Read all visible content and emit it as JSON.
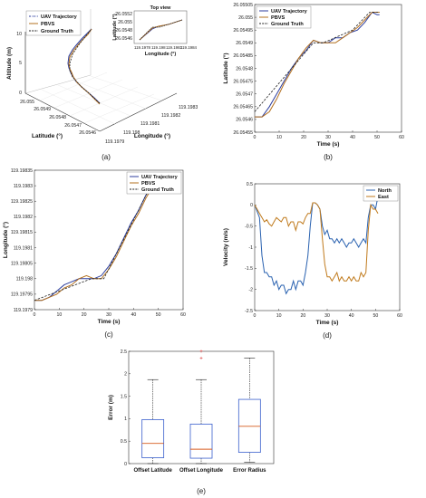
{
  "colors": {
    "uav": "#2c3e9e",
    "pbvs": "#b3701f",
    "ground": "#222222",
    "north": "#2a62b0",
    "east": "#c07a1c",
    "box": "#3a5fcd",
    "median": "#d65a1e",
    "outlier": "#d92222"
  },
  "chart_data": [
    {
      "id": "a",
      "panel_label": "(a)",
      "type": "line",
      "projection": "3d",
      "zlabel": "Altitude (m)",
      "ylabel": "Latitude (°)",
      "xlabel": "Longitude (°)",
      "z_ticks": [
        "10",
        "5",
        "0"
      ],
      "lat_ticks": [
        "26.055",
        "26.0549",
        "26.0548",
        "26.0547",
        "26.0546"
      ],
      "lon_ticks": [
        "119.1979",
        "119.198",
        "119.1981",
        "119.1982",
        "119.1983"
      ],
      "legend": [
        "UAV Trajectory",
        "PBVS",
        "Ground Truth"
      ],
      "inset": {
        "title": "Top view",
        "xlabel": "Longitude (°)",
        "ylabel": "Latitude (°)",
        "x_ticks": [
          "119.1978",
          "119.198",
          "119.1982",
          "119.1984"
        ],
        "y_ticks": [
          "26.0552",
          "26.055",
          "26.0548",
          "26.0546"
        ]
      }
    },
    {
      "id": "b",
      "panel_label": "(b)",
      "type": "line",
      "xlabel": "Time (s)",
      "ylabel": "Latitude (°)",
      "xlim": [
        0,
        60
      ],
      "ylim": [
        26.05455,
        26.05505
      ],
      "x_ticks": [
        "0",
        "10",
        "20",
        "30",
        "40",
        "50",
        "60"
      ],
      "y_ticks": [
        "26.05455",
        "26.0546",
        "26.05465",
        "26.0547",
        "26.05475",
        "26.0548",
        "26.05485",
        "26.0549",
        "26.05495",
        "26.055",
        "26.05505"
      ],
      "legend": [
        "UAV Trajectory",
        "PBVS",
        "Ground Truth"
      ],
      "series": [
        {
          "name": "UAV Trajectory",
          "x": [
            0,
            3,
            6,
            9,
            12,
            15,
            18,
            21,
            24,
            27,
            30,
            33,
            36,
            39,
            42,
            45,
            48,
            50,
            51
          ],
          "y": [
            26.05461,
            26.05461,
            26.05465,
            26.0547,
            26.05475,
            26.0548,
            26.05484,
            26.05487,
            26.05491,
            26.0549,
            26.0549,
            26.05492,
            26.05492,
            26.05494,
            26.05495,
            26.05498,
            26.05502,
            26.05501,
            26.05501
          ]
        },
        {
          "name": "PBVS",
          "x": [
            0,
            3,
            6,
            9,
            12,
            15,
            18,
            21,
            24,
            27,
            30,
            33,
            36,
            39,
            42,
            45,
            48,
            50,
            51
          ],
          "y": [
            26.05461,
            26.05461,
            26.05463,
            26.05468,
            26.05474,
            26.05479,
            26.05484,
            26.05488,
            26.05491,
            26.0549,
            26.0549,
            26.0549,
            26.05492,
            26.05494,
            26.05496,
            26.05499,
            26.05502,
            26.05502,
            26.05502
          ]
        },
        {
          "name": "Ground Truth",
          "x": [
            0,
            24,
            28,
            40,
            47,
            51
          ],
          "y": [
            26.05463,
            26.0549,
            26.0549,
            26.05495,
            26.05502,
            26.05502
          ]
        }
      ]
    },
    {
      "id": "c",
      "panel_label": "(c)",
      "type": "line",
      "xlabel": "Time (s)",
      "ylabel": "Longitude (°)",
      "xlim": [
        0,
        60
      ],
      "ylim": [
        119.1979,
        119.19835
      ],
      "x_ticks": [
        "0",
        "10",
        "20",
        "30",
        "40",
        "50",
        "60"
      ],
      "y_ticks": [
        "119.1979",
        "119.19795",
        "119.198",
        "119.19805",
        "119.1981",
        "119.19815",
        "119.1982",
        "119.19825",
        "119.1983",
        "119.19835"
      ],
      "legend": [
        "UAV Trajectory",
        "PBVS",
        "Ground Truth"
      ],
      "series": [
        {
          "name": "UAV Trajectory",
          "x": [
            0,
            3,
            6,
            9,
            12,
            15,
            18,
            21,
            24,
            27,
            30,
            33,
            36,
            39,
            42,
            45,
            48,
            50,
            51
          ],
          "y": [
            119.19793,
            119.19793,
            119.19794,
            119.19796,
            119.19798,
            119.19799,
            119.198,
            119.198,
            119.198,
            119.19801,
            119.19804,
            119.19808,
            119.19813,
            119.19818,
            119.19822,
            119.19827,
            119.1983,
            119.1983,
            119.1983
          ]
        },
        {
          "name": "PBVS",
          "x": [
            0,
            3,
            6,
            9,
            12,
            15,
            18,
            21,
            24,
            27,
            30,
            33,
            36,
            39,
            42,
            45,
            48,
            50,
            51
          ],
          "y": [
            119.19793,
            119.19793,
            119.19794,
            119.19795,
            119.19797,
            119.19798,
            119.198,
            119.19801,
            119.198,
            119.198,
            119.19803,
            119.19807,
            119.19812,
            119.19817,
            119.19821,
            119.19826,
            119.1983,
            119.19831,
            119.1983
          ]
        },
        {
          "name": "Ground Truth",
          "x": [
            0,
            23,
            28,
            47,
            51
          ],
          "y": [
            119.19793,
            119.198,
            119.198,
            119.1983,
            119.1983
          ]
        }
      ]
    },
    {
      "id": "d",
      "panel_label": "(d)",
      "type": "line",
      "xlabel": "Time (s)",
      "ylabel": "Velocity (m/s)",
      "xlim": [
        0,
        60
      ],
      "ylim": [
        -2.5,
        0.5
      ],
      "x_ticks": [
        "0",
        "10",
        "20",
        "30",
        "40",
        "50",
        "60"
      ],
      "y_ticks": [
        "-2.5",
        "-2",
        "-1.5",
        "-1",
        "-0.5",
        "0",
        "0.5"
      ],
      "legend": [
        "North",
        "East"
      ],
      "series": [
        {
          "name": "North",
          "x": [
            0,
            2,
            3,
            4,
            5,
            6,
            7,
            8,
            9,
            10,
            11,
            12,
            13,
            14,
            15,
            16,
            17,
            18,
            19,
            20,
            21,
            22,
            23,
            24,
            25,
            26,
            27,
            28,
            29,
            30,
            31,
            32,
            33,
            34,
            35,
            36,
            37,
            38,
            39,
            40,
            41,
            42,
            43,
            44,
            45,
            46,
            47,
            48,
            49,
            50,
            51
          ],
          "y": [
            0,
            -0.3,
            -1.2,
            -1.6,
            -1.6,
            -1.7,
            -1.7,
            -1.9,
            -1.8,
            -2.0,
            -1.9,
            -1.9,
            -2.1,
            -2.0,
            -2.0,
            -1.8,
            -2.0,
            -1.8,
            -1.8,
            -1.9,
            -1.6,
            -1.2,
            -0.5,
            0.05,
            0.05,
            0.0,
            -0.1,
            -0.5,
            -0.7,
            -0.6,
            -0.8,
            -0.8,
            -0.9,
            -0.8,
            -0.9,
            -0.8,
            -0.9,
            -1.0,
            -0.9,
            -0.9,
            -0.8,
            -0.9,
            -1.0,
            -0.9,
            -0.8,
            -0.9,
            -0.3,
            0.0,
            0.0,
            -0.1,
            0.2
          ]
        },
        {
          "name": "East",
          "x": [
            0,
            2,
            3,
            4,
            5,
            6,
            7,
            8,
            9,
            10,
            11,
            12,
            13,
            14,
            15,
            16,
            17,
            18,
            19,
            20,
            21,
            22,
            23,
            24,
            25,
            26,
            27,
            28,
            29,
            30,
            31,
            32,
            33,
            34,
            35,
            36,
            37,
            38,
            39,
            40,
            41,
            42,
            43,
            44,
            45,
            46,
            47,
            48,
            49,
            50,
            51
          ],
          "y": [
            0,
            -0.2,
            -0.3,
            -0.4,
            -0.35,
            -0.45,
            -0.5,
            -0.4,
            -0.3,
            -0.35,
            -0.4,
            -0.3,
            -0.3,
            -0.5,
            -0.4,
            -0.4,
            -0.6,
            -0.4,
            -0.4,
            -0.45,
            -0.3,
            -0.2,
            -0.2,
            0.05,
            0.05,
            0.0,
            -0.1,
            -0.8,
            -1.4,
            -1.7,
            -1.7,
            -1.8,
            -1.7,
            -1.6,
            -1.8,
            -1.7,
            -1.8,
            -1.8,
            -1.7,
            -1.8,
            -1.7,
            -1.8,
            -1.8,
            -1.6,
            -1.7,
            -1.6,
            -0.6,
            0.0,
            -0.1,
            -0.1,
            -0.2
          ]
        }
      ]
    },
    {
      "id": "e",
      "panel_label": "(e)",
      "type": "box",
      "ylabel": "Error (m)",
      "ylim": [
        0,
        2.5
      ],
      "y_ticks": [
        "0",
        "0.5",
        "1",
        "1.5",
        "2",
        "2.5"
      ],
      "categories": [
        "Offset Latitude",
        "Offset Longitude",
        "Error Radius"
      ],
      "boxes": [
        {
          "name": "Offset Latitude",
          "min": 0.0,
          "q1": 0.13,
          "median": 0.45,
          "q3": 0.98,
          "max": 1.87,
          "outliers": []
        },
        {
          "name": "Offset Longitude",
          "min": 0.0,
          "q1": 0.12,
          "median": 0.32,
          "q3": 0.88,
          "max": 1.87,
          "outliers": [
            2.35,
            2.5
          ]
        },
        {
          "name": "Error Radius",
          "min": 0.03,
          "q1": 0.25,
          "median": 0.83,
          "q3": 1.43,
          "max": 2.35,
          "outliers": []
        }
      ]
    }
  ]
}
